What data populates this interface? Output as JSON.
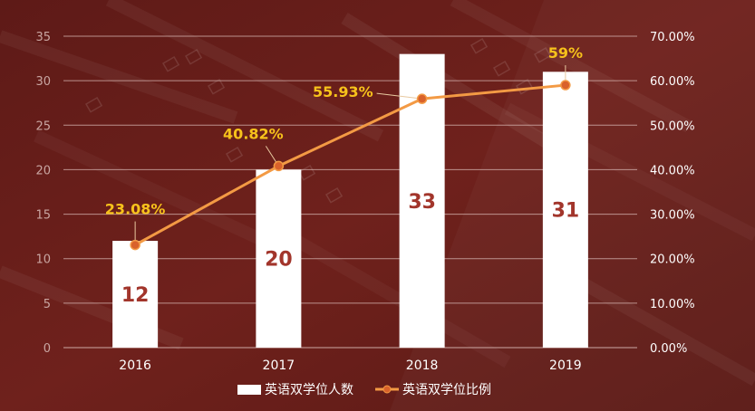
{
  "chart_data": {
    "type": "bar",
    "categories": [
      "2016",
      "2017",
      "2018",
      "2019"
    ],
    "series": [
      {
        "name": "英语双学位人数",
        "type": "bar",
        "axis": "left",
        "values": [
          12,
          20,
          33,
          31
        ],
        "labels": [
          "12",
          "20",
          "33",
          "31"
        ]
      },
      {
        "name": "英语双学位比例",
        "type": "line",
        "axis": "right",
        "values": [
          23.08,
          40.82,
          55.93,
          59
        ],
        "labels": [
          "23.08%",
          "40.82%",
          "55.93%",
          "59%"
        ]
      }
    ],
    "y_left": {
      "min": 0,
      "max": 35,
      "ticks": [
        "0",
        "5",
        "10",
        "15",
        "20",
        "25",
        "30",
        "35"
      ]
    },
    "y_right": {
      "min": 0,
      "max": 70,
      "ticks": [
        "0.00%",
        "10.00%",
        "20.00%",
        "30.00%",
        "40.00%",
        "50.00%",
        "60.00%",
        "70.00%"
      ]
    },
    "grid": true,
    "legend_position": "bottom-center",
    "colors": {
      "background": "#6b1e1a",
      "bar": "#ffffff",
      "line": "#f39a44",
      "point": "#d9622b",
      "bar_label": "#a2352b",
      "line_label": "#f7c21b",
      "grid": "#d8b8b4"
    }
  }
}
